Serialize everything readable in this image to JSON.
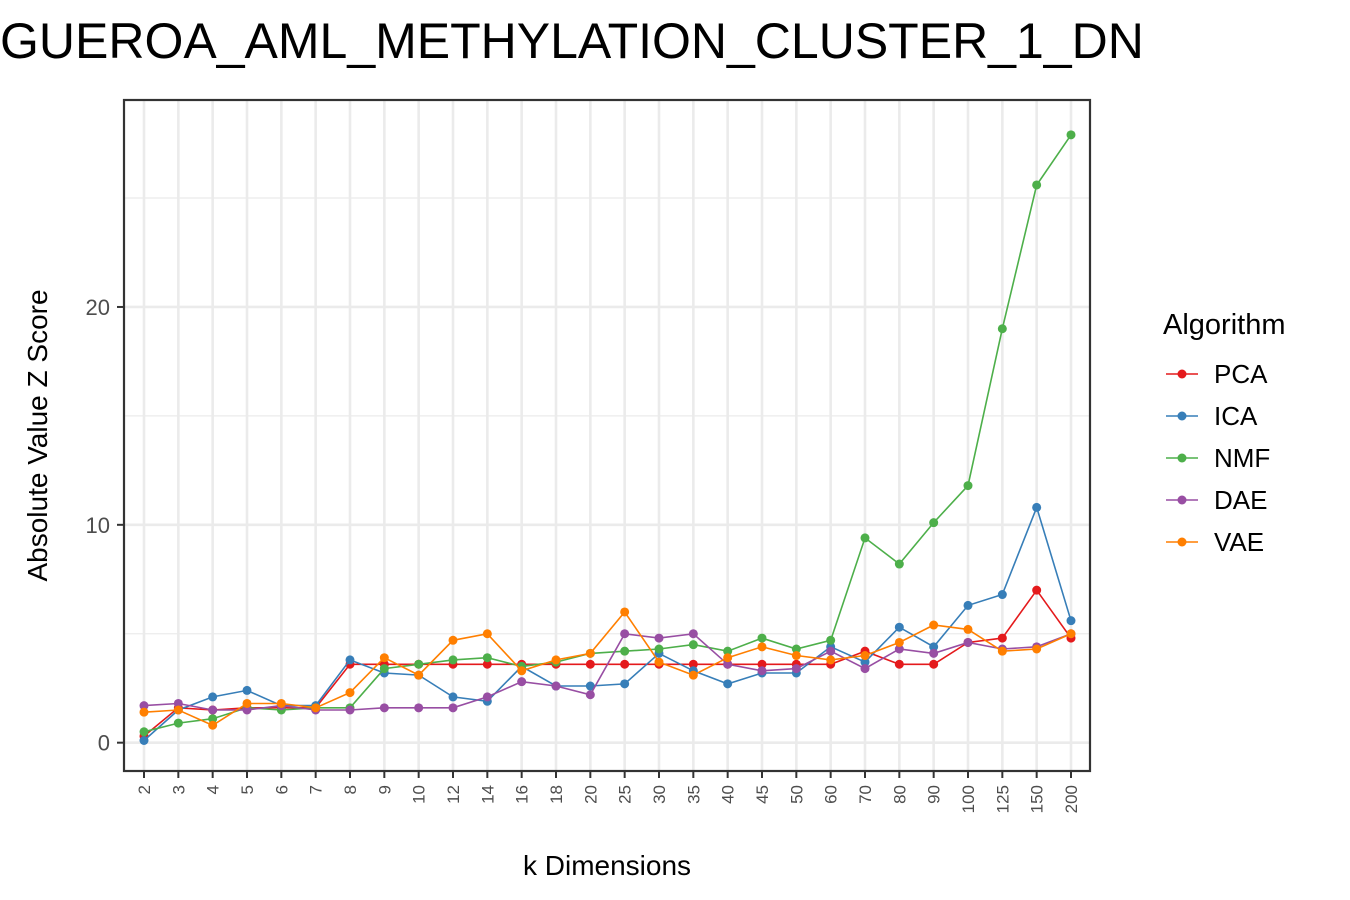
{
  "chart_data": {
    "type": "line",
    "title": "GUEROA_AML_METHYLATION_CLUSTER_1_DN",
    "xlabel": "k Dimensions",
    "ylabel": "Absolute Value Z Score",
    "categories": [
      "2",
      "3",
      "4",
      "5",
      "6",
      "7",
      "8",
      "9",
      "10",
      "12",
      "14",
      "16",
      "18",
      "20",
      "25",
      "30",
      "35",
      "40",
      "45",
      "50",
      "60",
      "70",
      "80",
      "90",
      "100",
      "125",
      "150",
      "200"
    ],
    "y_ticks": [
      0,
      10,
      20
    ],
    "ylim": [
      -1.3,
      29.5
    ],
    "grid": true,
    "legend": {
      "title": "Algorithm",
      "position": "right"
    },
    "series": [
      {
        "name": "PCA",
        "color": "#E41A1C",
        "values": [
          0.3,
          1.6,
          1.5,
          1.6,
          1.6,
          1.6,
          3.6,
          3.6,
          3.6,
          3.6,
          3.6,
          3.6,
          3.6,
          3.6,
          3.6,
          3.6,
          3.6,
          3.6,
          3.6,
          3.6,
          3.6,
          4.2,
          3.6,
          3.6,
          4.6,
          4.8,
          7.0,
          4.8
        ]
      },
      {
        "name": "ICA",
        "color": "#377EB8",
        "values": [
          0.1,
          1.5,
          2.1,
          2.4,
          1.7,
          1.7,
          3.8,
          3.2,
          3.1,
          2.1,
          1.9,
          3.5,
          2.6,
          2.6,
          2.7,
          4.1,
          3.3,
          2.7,
          3.2,
          3.2,
          4.4,
          3.7,
          5.3,
          4.4,
          6.3,
          6.8,
          10.8,
          5.6
        ]
      },
      {
        "name": "NMF",
        "color": "#4DAF4A",
        "values": [
          0.5,
          0.9,
          1.1,
          1.6,
          1.5,
          1.6,
          1.6,
          3.4,
          3.6,
          3.8,
          3.9,
          3.5,
          3.7,
          4.1,
          4.2,
          4.3,
          4.5,
          4.2,
          4.8,
          4.3,
          4.7,
          9.4,
          8.2,
          10.1,
          11.8,
          19.0,
          25.6,
          27.9
        ]
      },
      {
        "name": "DAE",
        "color": "#984EA3",
        "values": [
          1.7,
          1.8,
          1.5,
          1.5,
          1.7,
          1.5,
          1.5,
          1.6,
          1.6,
          1.6,
          2.1,
          2.8,
          2.6,
          2.2,
          5.0,
          4.8,
          5.0,
          3.6,
          3.3,
          3.4,
          4.2,
          3.4,
          4.3,
          4.1,
          4.6,
          4.3,
          4.4,
          5.0
        ]
      },
      {
        "name": "VAE",
        "color": "#FF7F00",
        "values": [
          1.4,
          1.5,
          0.8,
          1.8,
          1.8,
          1.6,
          2.3,
          3.9,
          3.1,
          4.7,
          5.0,
          3.3,
          3.8,
          4.1,
          6.0,
          3.7,
          3.1,
          3.9,
          4.4,
          4.0,
          3.8,
          4.0,
          4.6,
          5.4,
          5.2,
          4.2,
          4.3,
          5.0
        ]
      }
    ]
  }
}
